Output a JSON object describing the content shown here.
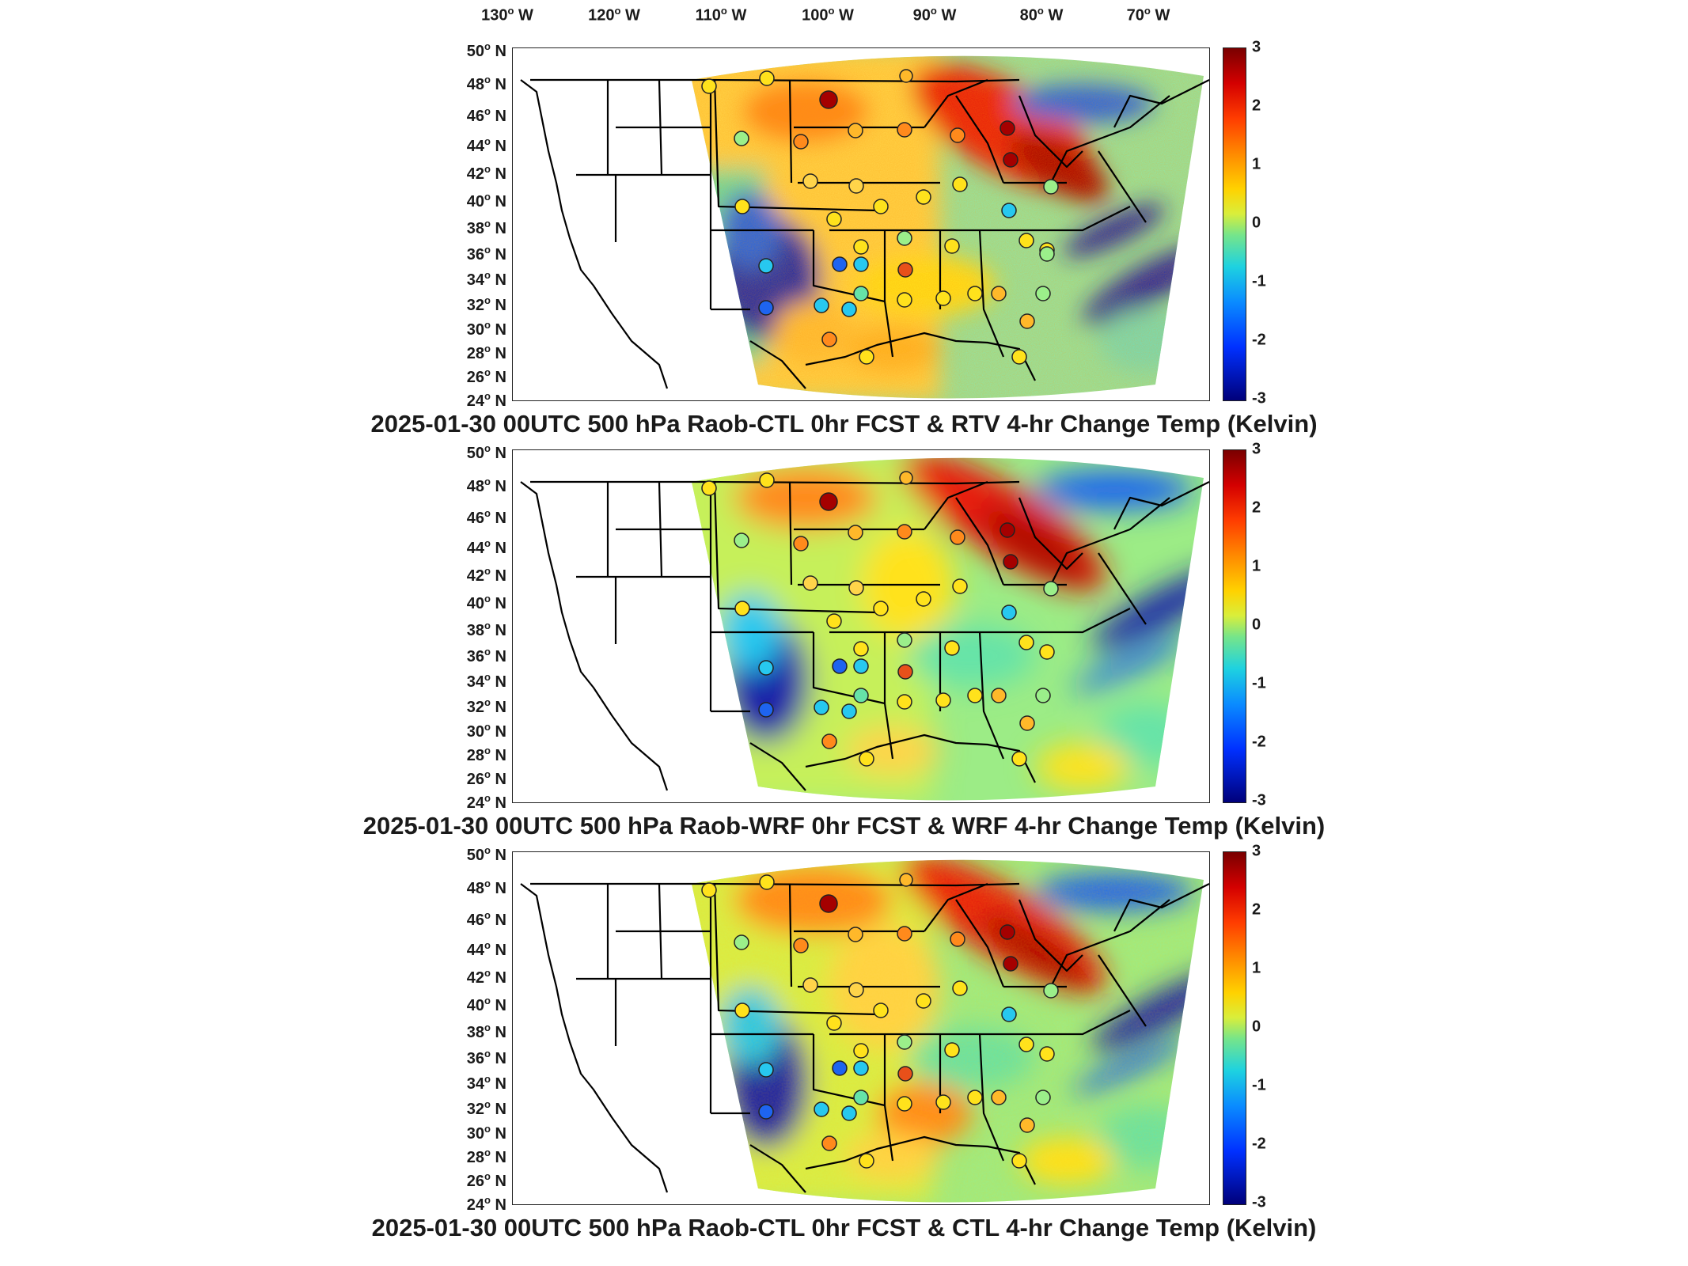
{
  "lon_labels": [
    "130",
    "120",
    "110",
    "100",
    "90",
    "80",
    "70"
  ],
  "lon_suffix": "W",
  "lat_labels": [
    "50",
    "48",
    "46",
    "44",
    "42",
    "40",
    "38",
    "36",
    "34",
    "32",
    "30",
    "28",
    "26",
    "24"
  ],
  "lat_suffix": "N",
  "colorbar": {
    "range": [
      -3,
      3
    ],
    "ticks": [
      "3",
      "2",
      "1",
      "0",
      "-1",
      "-2",
      "-3"
    ],
    "colormap": "jet"
  },
  "panels": [
    {
      "title": "2025-01-30 00UTC 500 hPa Raob-CTL 0hr FCST & RTV 4-hr Change Temp (Kelvin)",
      "variant": "rtv"
    },
    {
      "title": "2025-01-30 00UTC 500 hPa Raob-WRF 0hr FCST & WRF 4-hr Change Temp (Kelvin)",
      "variant": "wrf"
    },
    {
      "title": "2025-01-30 00UTC 500 hPa Raob-CTL 0hr FCST & CTL 4-hr Change Temp (Kelvin)",
      "variant": "ctl"
    }
  ],
  "colors": {
    "deep_red": "#a50000",
    "red": "#e8261a",
    "orange": "#ff8c1a",
    "yellow": "#ffe21c",
    "light_green": "#b8f060",
    "green": "#57e39a",
    "cyan": "#27c8ef",
    "blue": "#1e64f0",
    "dark_blue": "#1b22a8"
  }
}
